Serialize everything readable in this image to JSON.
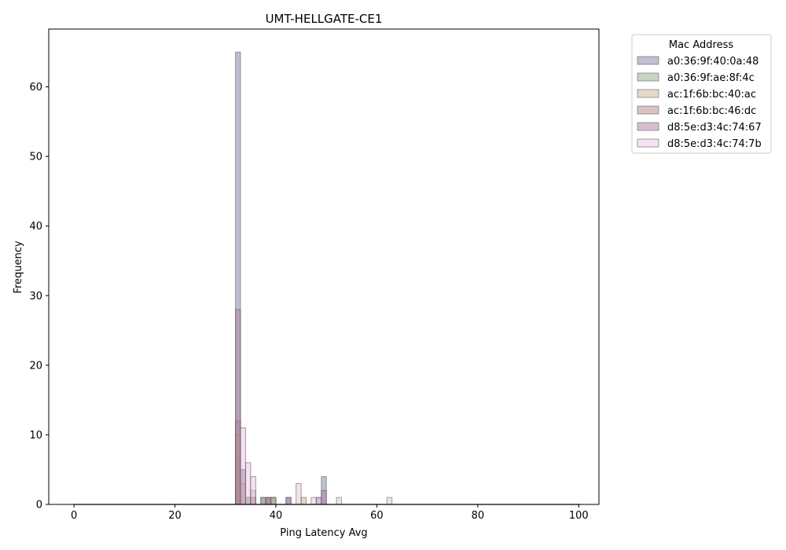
{
  "chart_data": {
    "type": "histogram",
    "title": "UMT-HELLGATE-CE1",
    "xlabel": "Ping Latency Avg",
    "ylabel": "Frequency",
    "xlim": [
      -5,
      104
    ],
    "ylim": [
      0,
      68.3
    ],
    "xticks": [
      0,
      20,
      40,
      60,
      80,
      100
    ],
    "yticks": [
      0,
      10,
      20,
      30,
      40,
      50,
      60
    ],
    "bin_width": 1,
    "bin_range": [
      0,
      99
    ],
    "legend": {
      "title": "Mac Address",
      "placement": "outside-right"
    },
    "series": [
      {
        "name": "a0:36:9f:40:0a:48",
        "color": "#7d7fa8",
        "bins": [
          {
            "x": 32,
            "y": 65
          },
          {
            "x": 33,
            "y": 5
          },
          {
            "x": 34,
            "y": 1
          },
          {
            "x": 35,
            "y": 1
          },
          {
            "x": 37,
            "y": 1
          },
          {
            "x": 38,
            "y": 1
          },
          {
            "x": 39,
            "y": 1
          },
          {
            "x": 42,
            "y": 1
          },
          {
            "x": 48,
            "y": 1
          },
          {
            "x": 49,
            "y": 4
          }
        ]
      },
      {
        "name": "a0:36:9f:ae:8f:4c",
        "color": "#93a982",
        "bins": [
          {
            "x": 32,
            "y": 7
          },
          {
            "x": 33,
            "y": 3
          },
          {
            "x": 34,
            "y": 1
          },
          {
            "x": 35,
            "y": 1
          },
          {
            "x": 37,
            "y": 1
          },
          {
            "x": 39,
            "y": 1
          }
        ]
      },
      {
        "name": "ac:1f:6b:bc:40:ac",
        "color": "#c8b48e",
        "bins": [
          {
            "x": 32,
            "y": 10
          },
          {
            "x": 33,
            "y": 3
          },
          {
            "x": 35,
            "y": 2
          },
          {
            "x": 39,
            "y": 1
          },
          {
            "x": 45,
            "y": 1
          }
        ]
      },
      {
        "name": "ac:1f:6b:bc:46:dc",
        "color": "#b88585",
        "bins": [
          {
            "x": 32,
            "y": 12
          },
          {
            "x": 33,
            "y": 3
          },
          {
            "x": 35,
            "y": 1
          },
          {
            "x": 38,
            "y": 1
          }
        ]
      },
      {
        "name": "d8:5e:d3:4c:74:67",
        "color": "#ab7fa0",
        "bins": [
          {
            "x": 32,
            "y": 28
          },
          {
            "x": 33,
            "y": 5
          },
          {
            "x": 38,
            "y": 1
          },
          {
            "x": 42,
            "y": 1
          },
          {
            "x": 49,
            "y": 2
          }
        ]
      },
      {
        "name": "d8:5e:d3:4c:74:7b",
        "color": "#eac6e3",
        "bins": [
          {
            "x": 33,
            "y": 11
          },
          {
            "x": 34,
            "y": 6
          },
          {
            "x": 35,
            "y": 4
          },
          {
            "x": 44,
            "y": 3
          },
          {
            "x": 47,
            "y": 1
          },
          {
            "x": 48,
            "y": 1
          },
          {
            "x": 52,
            "y": 1
          },
          {
            "x": 62,
            "y": 1
          }
        ]
      }
    ]
  }
}
